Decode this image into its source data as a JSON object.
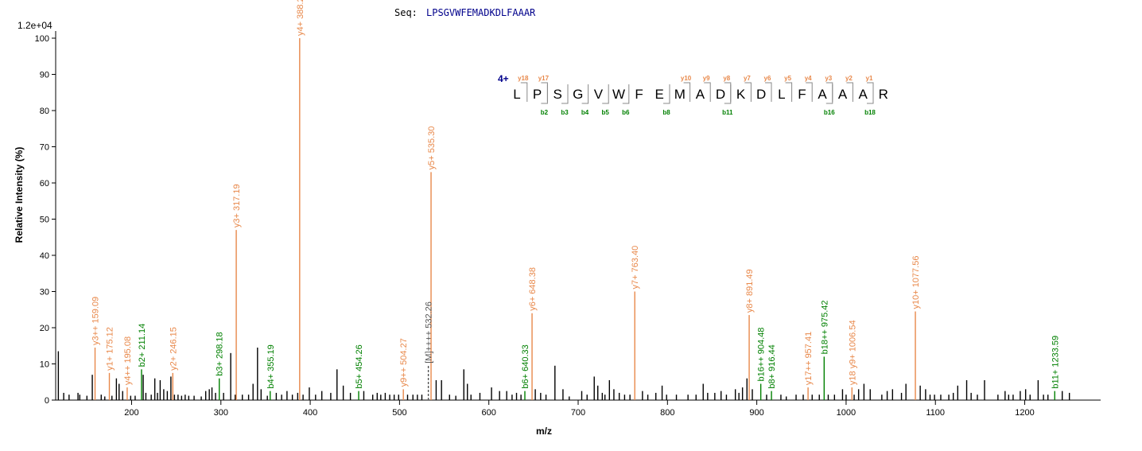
{
  "chart_data": {
    "type": "bar",
    "subtype": "mass-spectrum",
    "sequence_label": "Seq:",
    "sequence": "LPSGVWFEMADKDLFAAAR",
    "scale_label": "1.2e+04",
    "ylabel": "Relative   Intensity (%)",
    "xlabel": "m/z",
    "xlim": [
      115,
      1285
    ],
    "ylim": [
      0,
      100
    ],
    "xticks": [
      200,
      300,
      400,
      500,
      600,
      700,
      800,
      900,
      1000,
      1100,
      1200
    ],
    "yticks": [
      0,
      10,
      20,
      30,
      40,
      50,
      60,
      70,
      80,
      90,
      100
    ],
    "colors": {
      "y_ion": "#e8884a",
      "b_ion": "#008000",
      "precursor": "#555555",
      "unassigned": "#000000",
      "charge": "#00008b",
      "sequence": "#00008b"
    },
    "charge_label": "4+",
    "residues": [
      "L",
      "P",
      "S",
      "G",
      "V",
      "W",
      "F",
      "E",
      "M",
      "A",
      "D",
      "K",
      "D",
      "L",
      "F",
      "A",
      "A",
      "A",
      "R"
    ],
    "sequence_marks": {
      "y": [
        {
          "after": 1,
          "label": "y18"
        },
        {
          "after": 2,
          "label": "y17"
        },
        {
          "after": 9,
          "label": "y10"
        },
        {
          "after": 10,
          "label": "y9"
        },
        {
          "after": 11,
          "label": "y8"
        },
        {
          "after": 12,
          "label": "y7"
        },
        {
          "after": 13,
          "label": "y6"
        },
        {
          "after": 14,
          "label": "y5"
        },
        {
          "after": 15,
          "label": "y4"
        },
        {
          "after": 16,
          "label": "y3"
        },
        {
          "after": 17,
          "label": "y2"
        },
        {
          "after": 18,
          "label": "y1"
        }
      ],
      "b": [
        {
          "after": 2,
          "label": "b2"
        },
        {
          "after": 3,
          "label": "b3"
        },
        {
          "after": 4,
          "label": "b4"
        },
        {
          "after": 5,
          "label": "b5"
        },
        {
          "after": 6,
          "label": "b6"
        },
        {
          "after": 8,
          "label": "b8"
        },
        {
          "after": 11,
          "label": "b11"
        },
        {
          "after": 16,
          "label": "b16"
        },
        {
          "after": 18,
          "label": "b18"
        }
      ]
    },
    "assigned_peaks": [
      {
        "mz": 159.09,
        "intensity": 14.5,
        "label": "y3++ 159.09",
        "type": "y"
      },
      {
        "mz": 175.12,
        "intensity": 7.5,
        "label": "y1+ 175.12",
        "type": "y"
      },
      {
        "mz": 195.08,
        "intensity": 3.5,
        "label": "y4++ 195.08",
        "type": "y"
      },
      {
        "mz": 211.14,
        "intensity": 8.5,
        "label": "b2+ 211.14",
        "type": "b"
      },
      {
        "mz": 246.15,
        "intensity": 7.5,
        "label": "y2+ 246.15",
        "type": "y"
      },
      {
        "mz": 298.18,
        "intensity": 6.0,
        "label": "b3+ 298.18",
        "type": "b"
      },
      {
        "mz": 317.19,
        "intensity": 47,
        "label": "y3+ 317.19",
        "type": "y"
      },
      {
        "mz": 355.19,
        "intensity": 2.5,
        "label": "b4+ 355.19",
        "type": "b"
      },
      {
        "mz": 388.2,
        "intensity": 100,
        "label": "y4+ 388.2",
        "type": "y"
      },
      {
        "mz": 454.26,
        "intensity": 2.5,
        "label": "b5+ 454.26",
        "type": "b"
      },
      {
        "mz": 504.27,
        "intensity": 3.0,
        "label": "y9++ 504.27",
        "type": "y"
      },
      {
        "mz": 532.26,
        "intensity": 9.5,
        "label": "[M]++++ 532.26",
        "type": "precursor"
      },
      {
        "mz": 535.3,
        "intensity": 63,
        "label": "y5+ 535.30",
        "type": "y"
      },
      {
        "mz": 640.33,
        "intensity": 2.5,
        "label": "b6+ 640.33",
        "type": "b"
      },
      {
        "mz": 648.38,
        "intensity": 24,
        "label": "y6+ 648.38",
        "type": "y"
      },
      {
        "mz": 763.4,
        "intensity": 30,
        "label": "y7+ 763.40",
        "type": "y"
      },
      {
        "mz": 891.49,
        "intensity": 23.5,
        "label": "y8+ 891.49",
        "type": "y"
      },
      {
        "mz": 904.48,
        "intensity": 4.5,
        "label": "b16++ 904.48",
        "type": "b"
      },
      {
        "mz": 916.44,
        "intensity": 2.5,
        "label": "b8+ 916.44",
        "type": "b"
      },
      {
        "mz": 957.41,
        "intensity": 3.5,
        "label": "y17++ 957.41",
        "type": "y"
      },
      {
        "mz": 975.42,
        "intensity": 12,
        "label": "b18++ 975.42",
        "type": "b"
      },
      {
        "mz": 1006.54,
        "intensity": 3.5,
        "label": "y18 y9+ 1006.54",
        "type": "y"
      },
      {
        "mz": 1077.56,
        "intensity": 24.5,
        "label": "y10+ 1077.56",
        "type": "y"
      },
      {
        "mz": 1233.59,
        "intensity": 2.5,
        "label": "b11+ 1233.59",
        "type": "b"
      }
    ],
    "unassigned_peaks": [
      [
        118,
        13.5
      ],
      [
        124,
        2
      ],
      [
        130,
        1.5
      ],
      [
        140,
        2
      ],
      [
        142,
        1.5
      ],
      [
        150,
        1.2
      ],
      [
        156,
        7
      ],
      [
        166,
        1.5
      ],
      [
        170,
        1
      ],
      [
        178,
        1.2
      ],
      [
        183,
        6
      ],
      [
        186,
        4.5
      ],
      [
        190,
        2.5
      ],
      [
        199,
        1.2
      ],
      [
        204,
        1.2
      ],
      [
        213,
        7
      ],
      [
        216,
        2
      ],
      [
        222,
        1.5
      ],
      [
        226,
        6
      ],
      [
        229,
        2
      ],
      [
        232,
        5.5
      ],
      [
        236,
        3
      ],
      [
        240,
        2.5
      ],
      [
        244,
        6.5
      ],
      [
        248,
        1.5
      ],
      [
        252,
        1.5
      ],
      [
        256,
        1.2
      ],
      [
        260,
        1.5
      ],
      [
        264,
        1.2
      ],
      [
        270,
        1.2
      ],
      [
        278,
        1
      ],
      [
        283,
        2.5
      ],
      [
        287,
        3
      ],
      [
        290,
        3.5
      ],
      [
        294,
        2
      ],
      [
        303,
        2
      ],
      [
        311,
        13
      ],
      [
        316,
        1.5
      ],
      [
        324,
        1.5
      ],
      [
        331,
        1.5
      ],
      [
        336,
        4.5
      ],
      [
        341,
        14.5
      ],
      [
        345,
        3
      ],
      [
        352,
        1.2
      ],
      [
        362,
        2
      ],
      [
        368,
        1.5
      ],
      [
        374,
        2.5
      ],
      [
        380,
        1.5
      ],
      [
        386,
        2
      ],
      [
        392,
        1.5
      ],
      [
        399,
        3.5
      ],
      [
        406,
        1.5
      ],
      [
        413,
        2.5
      ],
      [
        423,
        2
      ],
      [
        430,
        8.5
      ],
      [
        437,
        4
      ],
      [
        445,
        2
      ],
      [
        460,
        2.5
      ],
      [
        470,
        1.5
      ],
      [
        475,
        2
      ],
      [
        479,
        1.5
      ],
      [
        484,
        2
      ],
      [
        489,
        1.5
      ],
      [
        494,
        1.5
      ],
      [
        499,
        1.5
      ],
      [
        509,
        1.5
      ],
      [
        515,
        1.5
      ],
      [
        520,
        1.5
      ],
      [
        525,
        1.5
      ],
      [
        541,
        5.5
      ],
      [
        547,
        5.5
      ],
      [
        556,
        1.5
      ],
      [
        563,
        1.2
      ],
      [
        572,
        8.5
      ],
      [
        576,
        4.5
      ],
      [
        580,
        1.5
      ],
      [
        590,
        2
      ],
      [
        603,
        3.5
      ],
      [
        612,
        2.5
      ],
      [
        620,
        2.5
      ],
      [
        626,
        1.5
      ],
      [
        631,
        2
      ],
      [
        636,
        1.5
      ],
      [
        652,
        3
      ],
      [
        658,
        2
      ],
      [
        664,
        1.5
      ],
      [
        674,
        9.5
      ],
      [
        683,
        3
      ],
      [
        690,
        1
      ],
      [
        704,
        2.5
      ],
      [
        710,
        1.5
      ],
      [
        718,
        6.5
      ],
      [
        722,
        4
      ],
      [
        727,
        2
      ],
      [
        730,
        1.5
      ],
      [
        735,
        5.5
      ],
      [
        740,
        3
      ],
      [
        746,
        2
      ],
      [
        752,
        1.5
      ],
      [
        758,
        1.5
      ],
      [
        772,
        2.5
      ],
      [
        778,
        1.5
      ],
      [
        787,
        2
      ],
      [
        794,
        4
      ],
      [
        799,
        1.5
      ],
      [
        810,
        1.5
      ],
      [
        823,
        1.5
      ],
      [
        832,
        1.5
      ],
      [
        840,
        4.5
      ],
      [
        845,
        2
      ],
      [
        853,
        2
      ],
      [
        860,
        2.5
      ],
      [
        866,
        1.5
      ],
      [
        876,
        3
      ],
      [
        880,
        2
      ],
      [
        884,
        3.5
      ],
      [
        889,
        6
      ],
      [
        895,
        3
      ],
      [
        911,
        1.5
      ],
      [
        927,
        1.5
      ],
      [
        933,
        1
      ],
      [
        944,
        1.5
      ],
      [
        952,
        1.5
      ],
      [
        962,
        1.5
      ],
      [
        970,
        1.5
      ],
      [
        980,
        1.5
      ],
      [
        987,
        1.5
      ],
      [
        996,
        3
      ],
      [
        1000,
        1.5
      ],
      [
        1009,
        1.5
      ],
      [
        1014,
        3
      ],
      [
        1020,
        4.5
      ],
      [
        1027,
        3
      ],
      [
        1040,
        1.5
      ],
      [
        1046,
        2.5
      ],
      [
        1052,
        3
      ],
      [
        1062,
        2
      ],
      [
        1067,
        4.5
      ],
      [
        1083,
        4
      ],
      [
        1089,
        3
      ],
      [
        1094,
        1.5
      ],
      [
        1099,
        1.5
      ],
      [
        1106,
        1.5
      ],
      [
        1115,
        1.5
      ],
      [
        1120,
        2
      ],
      [
        1125,
        4
      ],
      [
        1135,
        5.5
      ],
      [
        1140,
        2
      ],
      [
        1147,
        1.5
      ],
      [
        1155,
        5.5
      ],
      [
        1170,
        1.5
      ],
      [
        1178,
        2.5
      ],
      [
        1182,
        1.5
      ],
      [
        1187,
        1.5
      ],
      [
        1195,
        2.5
      ],
      [
        1201,
        3
      ],
      [
        1206,
        1.5
      ],
      [
        1215,
        5.5
      ],
      [
        1221,
        1.5
      ],
      [
        1226,
        1.5
      ],
      [
        1242,
        2.5
      ],
      [
        1250,
        2
      ]
    ]
  }
}
